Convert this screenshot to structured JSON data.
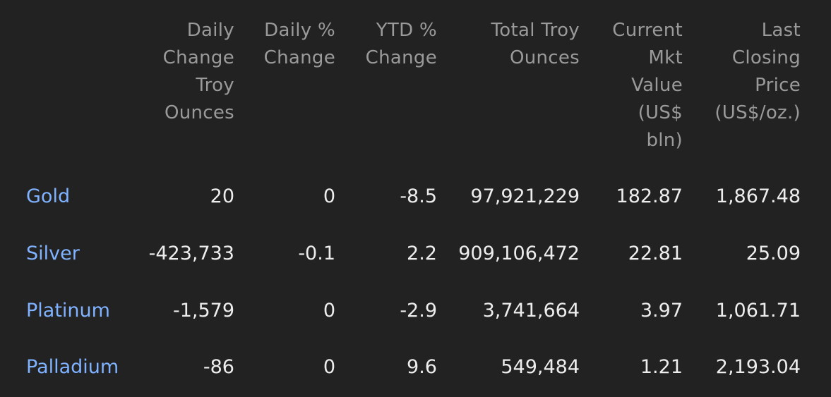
{
  "table": {
    "headers": [
      "Daily Change Troy Ounces",
      "Daily % Change",
      "YTD % Change",
      "Total Troy Ounces",
      "Current Mkt Value (US$ bln)",
      "Last Closing Price (US$/oz.)"
    ],
    "rows": [
      {
        "metal": "Gold",
        "cells": [
          "20",
          "0",
          "-8.5",
          "97,921,229",
          "182.87",
          "1,867.48"
        ]
      },
      {
        "metal": "Silver",
        "cells": [
          "-423,733",
          "-0.1",
          "2.2",
          "909,106,472",
          "22.81",
          "25.09"
        ]
      },
      {
        "metal": "Platinum",
        "cells": [
          "-1,579",
          "0",
          "-2.9",
          "3,741,664",
          "3.97",
          "1,061.71"
        ]
      },
      {
        "metal": "Palladium",
        "cells": [
          "-86",
          "0",
          "9.6",
          "549,484",
          "1.21",
          "2,193.04"
        ]
      }
    ]
  },
  "colors": {
    "background": "#222222",
    "header_text": "#9a9a9a",
    "cell_text": "#ededed",
    "link": "#7fb2ff"
  }
}
